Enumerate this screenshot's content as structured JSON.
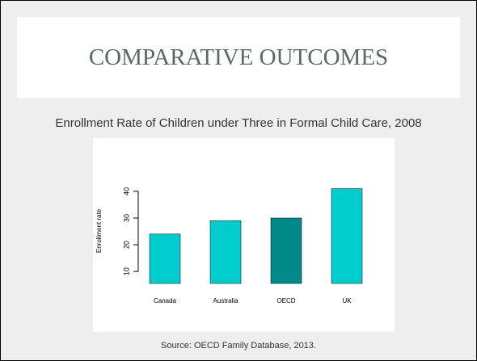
{
  "slide_title": "COMPARATIVE OUTCOMES",
  "subtitle": "Enrollment Rate of Children under Three in Formal  Child Care, 2008",
  "source": "Source: OECD Family Database, 2013.",
  "chart_data": {
    "type": "bar",
    "y_label": "Enrollment rate",
    "categories": [
      "Canada",
      "Australia",
      "OECD",
      "UK"
    ],
    "values": [
      24,
      29,
      30,
      41
    ],
    "colors": [
      "#00cdcd",
      "#00cdcd",
      "#008b8b",
      "#00cdcd"
    ],
    "ylim": [
      5.5,
      43
    ],
    "yticks": [
      10,
      20,
      30,
      40
    ],
    "grid": false
  }
}
